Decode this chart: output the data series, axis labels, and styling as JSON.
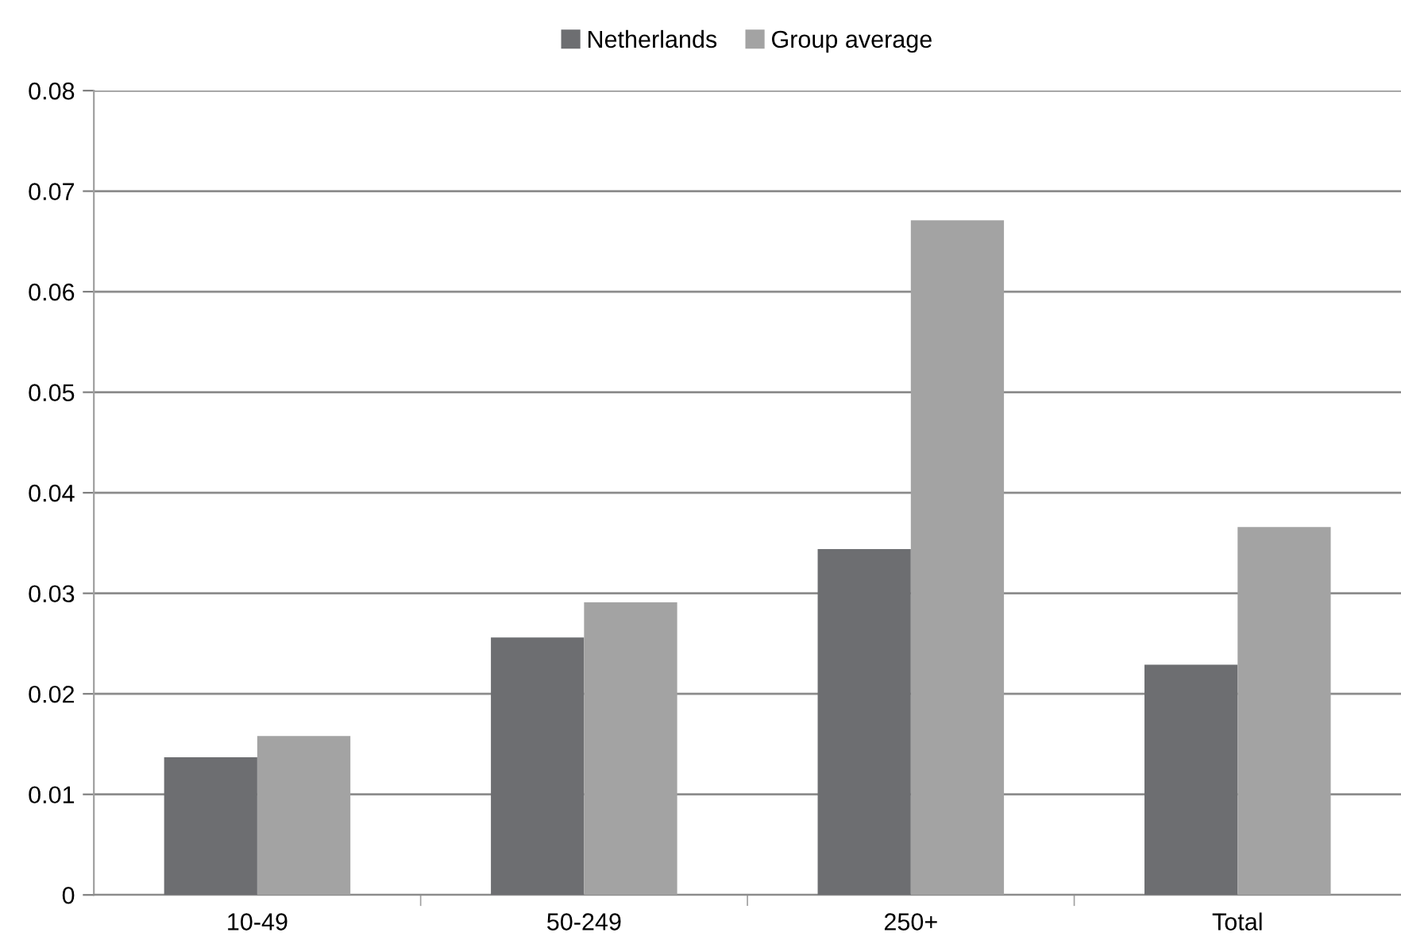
{
  "chart_data": {
    "type": "bar",
    "categories": [
      "10-49",
      "50-249",
      "250+",
      "Total"
    ],
    "series": [
      {
        "name": "Netherlands",
        "color": "#6d6e71",
        "values": [
          0.0137,
          0.0256,
          0.0344,
          0.0229
        ]
      },
      {
        "name": "Group average",
        "color": "#a3a3a3",
        "values": [
          0.0158,
          0.0291,
          0.0671,
          0.0366
        ]
      }
    ],
    "ylim": [
      0,
      0.08
    ],
    "yticks": [
      0,
      0.01,
      0.02,
      0.03,
      0.04,
      0.05,
      0.06,
      0.07,
      0.08
    ],
    "grid": "y",
    "legend": "top"
  }
}
